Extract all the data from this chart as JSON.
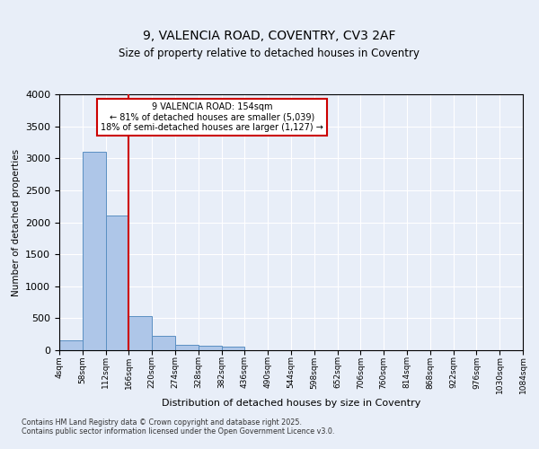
{
  "title_line1": "9, VALENCIA ROAD, COVENTRY, CV3 2AF",
  "title_line2": "Size of property relative to detached houses in Coventry",
  "xlabel": "Distribution of detached houses by size in Coventry",
  "ylabel": "Number of detached properties",
  "bin_edges": [
    "4sqm",
    "58sqm",
    "112sqm",
    "166sqm",
    "220sqm",
    "274sqm",
    "328sqm",
    "382sqm",
    "436sqm",
    "490sqm",
    "544sqm",
    "598sqm",
    "652sqm",
    "706sqm",
    "760sqm",
    "814sqm",
    "868sqm",
    "922sqm",
    "976sqm",
    "1030sqm",
    "1084sqm"
  ],
  "bar_values": [
    150,
    3100,
    2100,
    530,
    220,
    90,
    70,
    50,
    0,
    0,
    0,
    0,
    0,
    0,
    0,
    0,
    0,
    0,
    0,
    0
  ],
  "bar_color": "#aec6e8",
  "bar_edgecolor": "#5a8fc2",
  "vline_x": 3.0,
  "vline_color": "#cc0000",
  "ylim": [
    0,
    4000
  ],
  "yticks": [
    0,
    500,
    1000,
    1500,
    2000,
    2500,
    3000,
    3500,
    4000
  ],
  "annotation_text": "9 VALENCIA ROAD: 154sqm\n← 81% of detached houses are smaller (5,039)\n18% of semi-detached houses are larger (1,127) →",
  "annotation_box_color": "#ffffff",
  "annotation_box_edgecolor": "#cc0000",
  "footer_text": "Contains HM Land Registry data © Crown copyright and database right 2025.\nContains public sector information licensed under the Open Government Licence v3.0.",
  "background_color": "#e8eef8",
  "plot_bg_color": "#e8eef8"
}
